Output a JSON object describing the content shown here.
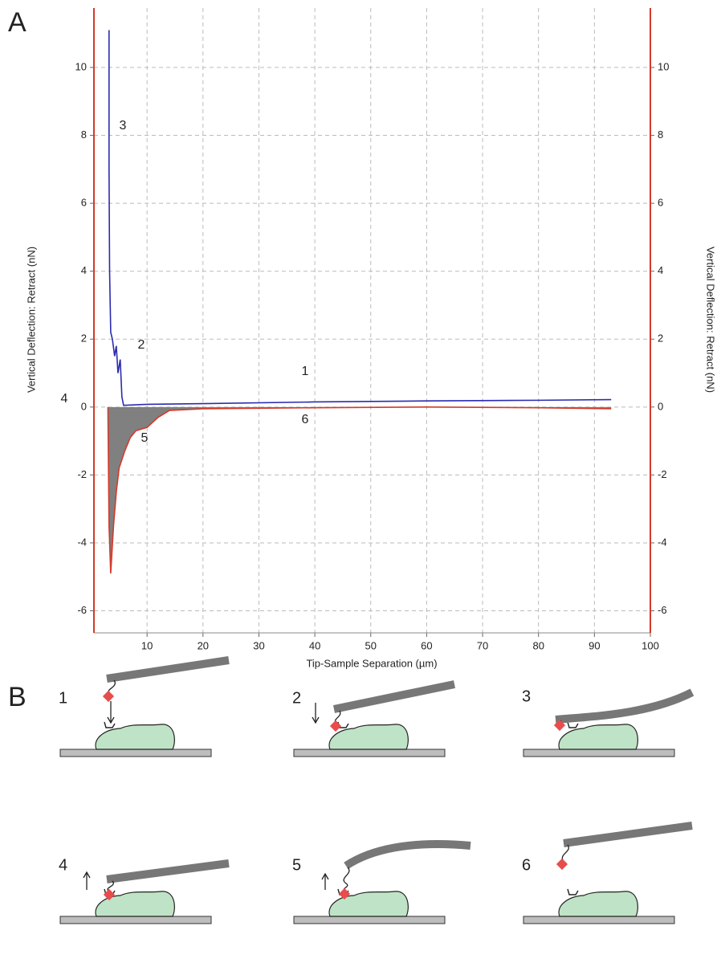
{
  "chart_data": {
    "type": "line",
    "panel_label": "A",
    "x_label": "Tip-Sample Separation (µm)",
    "y_label": "Vertical Deflection: Retract (nN)",
    "y2_label": "Vertical Deflection: Retract (nN)",
    "xlim": [
      0.5,
      100
    ],
    "xticks": [
      10,
      20,
      30,
      40,
      50,
      60,
      70,
      80,
      90,
      100
    ],
    "ylim": [
      -6.65,
      11.75
    ],
    "yticks": [
      -6,
      -4,
      -2,
      0,
      2,
      4,
      6,
      8,
      10
    ],
    "y2lim": [
      -6.65,
      11.75
    ],
    "y2ticks": [
      -6,
      -4,
      -2,
      0,
      2,
      4,
      6,
      8,
      10
    ],
    "grid": true,
    "axis_color": "#d43a2a",
    "series": [
      {
        "color": "#2b2bb0",
        "fill": false,
        "x": [
          3.2,
          3.2,
          3.3,
          3.5,
          3.8,
          4.2,
          4.5,
          4.8,
          5.2,
          5.5,
          5.8,
          10,
          20,
          40,
          60,
          80,
          93
        ],
        "values": [
          11.1,
          7,
          4,
          2.2,
          2,
          1.5,
          1.8,
          1.0,
          1.4,
          0.3,
          0.05,
          0.08,
          0.1,
          0.15,
          0.18,
          0.2,
          0.22
        ]
      },
      {
        "color": "#d43a2a",
        "fill": true,
        "fill_color": "#808080",
        "x": [
          3.0,
          3.2,
          3.5,
          4,
          4.5,
          5,
          6,
          7,
          8,
          10,
          12,
          14,
          20,
          40,
          60,
          80,
          93
        ],
        "values": [
          0,
          -3.5,
          -4.9,
          -3.5,
          -2.5,
          -1.8,
          -1.3,
          -0.9,
          -0.7,
          -0.6,
          -0.3,
          -0.1,
          -0.05,
          -0.02,
          0,
          -0.02,
          -0.05
        ]
      }
    ],
    "annotations": [
      "1",
      "2",
      "3",
      "4",
      "5",
      "6"
    ]
  },
  "diagram": {
    "panel_label": "B",
    "steps": [
      "1",
      "2",
      "3",
      "4",
      "5",
      "6"
    ]
  }
}
